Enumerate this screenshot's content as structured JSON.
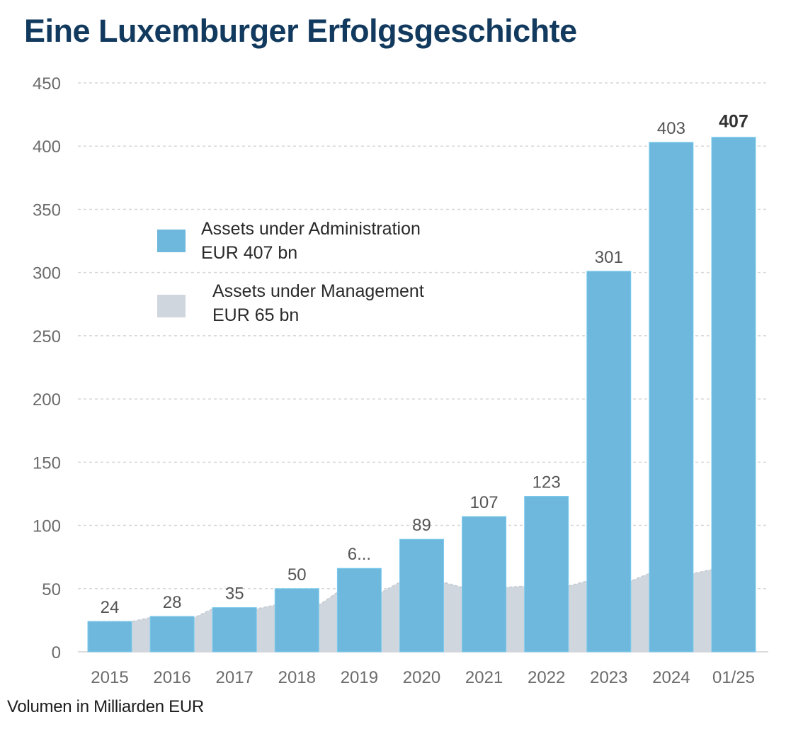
{
  "title": "Eine Luxemburger Erfolgsgeschichte",
  "footnote": "Volumen in Milliarden EUR",
  "colors": {
    "title": "#123a5e",
    "aua_bar": "#6db8dc",
    "aum_area": "#d0d6de",
    "grid": "#d6d6d6",
    "tick_label": "#6b6b6b",
    "data_label": "#555555",
    "data_label_highlight": "#333333"
  },
  "legend": {
    "items": [
      {
        "line1": "Assets under Administration",
        "line2": "EUR 407 bn",
        "series": "aua"
      },
      {
        "line1": "Assets under Management",
        "line2": "EUR 65 bn",
        "series": "aum"
      }
    ]
  },
  "chart_data": {
    "type": "bar",
    "title": "Eine Luxemburger Erfolgsgeschichte",
    "xlabel": "",
    "ylabel": "Volumen in Milliarden EUR",
    "categories": [
      "2015",
      "2016",
      "2017",
      "2018",
      "2019",
      "2020",
      "2021",
      "2022",
      "2023",
      "2024",
      "01/25"
    ],
    "ylim": [
      0,
      450
    ],
    "yticks": [
      0,
      50,
      100,
      150,
      200,
      250,
      300,
      350,
      400,
      450
    ],
    "grid": true,
    "legend_position": "center-left",
    "series": [
      {
        "name": "Assets under Administration",
        "type": "bar",
        "values": [
          24,
          28,
          35,
          50,
          66,
          89,
          107,
          123,
          301,
          403,
          407
        ],
        "data_labels": [
          "24",
          "28",
          "35",
          "50",
          "6...",
          "89",
          "107",
          "123",
          "301",
          "403",
          "407"
        ],
        "highlight_last": true
      },
      {
        "name": "Assets under Management",
        "type": "area",
        "values": [
          24,
          27,
          34,
          37,
          47,
          55,
          51,
          52,
          56,
          62,
          65
        ]
      }
    ]
  }
}
